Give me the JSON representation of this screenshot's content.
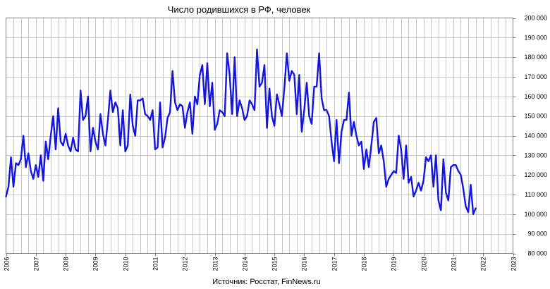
{
  "chart_data": {
    "type": "line",
    "title": "Число родившихся в РФ, человек",
    "source": "Источник: Росстат, FinNews.ru",
    "xlabel": "",
    "ylabel": "",
    "ylim": [
      80000,
      200000
    ],
    "xlim": [
      2006,
      2023
    ],
    "y_ticks": [
      80000,
      90000,
      100000,
      110000,
      120000,
      130000,
      140000,
      150000,
      160000,
      170000,
      180000,
      190000,
      200000
    ],
    "y_tick_labels": [
      "80 000",
      "90 000",
      "100 000",
      "110 000",
      "120 000",
      "130 000",
      "140 000",
      "150 000",
      "160 000",
      "170 000",
      "180 000",
      "190 000",
      "200 000"
    ],
    "x_ticks": [
      "2006",
      "2007",
      "2008",
      "2009",
      "2010",
      "2011",
      "2012",
      "2013",
      "2014",
      "2015",
      "2016",
      "2017",
      "2018",
      "2019",
      "2020",
      "2021",
      "2022",
      "2023"
    ],
    "grid": true,
    "legend": "none",
    "line_color": "#1515e0",
    "series": [
      {
        "start": "2006-01",
        "frequency": "monthly",
        "values": [
          109000,
          114000,
          129000,
          114000,
          126000,
          125000,
          128000,
          140000,
          124000,
          131000,
          122000,
          118000,
          125000,
          119000,
          130000,
          117000,
          137000,
          128000,
          140000,
          150000,
          133000,
          154000,
          137000,
          135000,
          141000,
          135000,
          132000,
          139000,
          133000,
          132000,
          163000,
          148000,
          150000,
          160000,
          132000,
          144000,
          137000,
          133000,
          151000,
          141000,
          135000,
          148000,
          163000,
          152000,
          157000,
          154000,
          135000,
          153000,
          132000,
          135000,
          161000,
          145000,
          140000,
          158000,
          158000,
          159000,
          151000,
          150000,
          148000,
          153000,
          133000,
          134000,
          157000,
          134000,
          139000,
          149000,
          152000,
          173000,
          157000,
          153000,
          156000,
          155000,
          144000,
          152000,
          157000,
          141000,
          160000,
          156000,
          171000,
          176000,
          156000,
          177000,
          155000,
          167000,
          143000,
          146000,
          153000,
          152000,
          150000,
          182000,
          171000,
          151000,
          180000,
          150000,
          158000,
          154000,
          148000,
          150000,
          158000,
          156000,
          153000,
          184000,
          165000,
          167000,
          176000,
          144000,
          164000,
          150000,
          145000,
          161000,
          156000,
          150000,
          164000,
          182000,
          168000,
          173000,
          171000,
          151000,
          171000,
          142000,
          153000,
          167000,
          150000,
          146000,
          165000,
          165000,
          182000,
          159000,
          153000,
          153000,
          150000,
          137000,
          127000,
          148000,
          126000,
          142000,
          148000,
          148000,
          162000,
          140000,
          147000,
          140000,
          135000,
          137000,
          123000,
          133000,
          124000,
          135000,
          147000,
          149000,
          131000,
          135000,
          127000,
          114000,
          118000,
          120000,
          122000,
          121000,
          140000,
          133000,
          118000,
          135000,
          116000,
          119000,
          109000,
          112000,
          116000,
          112000,
          117000,
          129000,
          127000,
          130000,
          114000,
          130000,
          107000,
          102000,
          128000,
          111000,
          107000,
          124000,
          125000,
          125000,
          122000,
          120000,
          113000,
          104000,
          101000,
          115000,
          100000,
          103000
        ]
      }
    ]
  }
}
